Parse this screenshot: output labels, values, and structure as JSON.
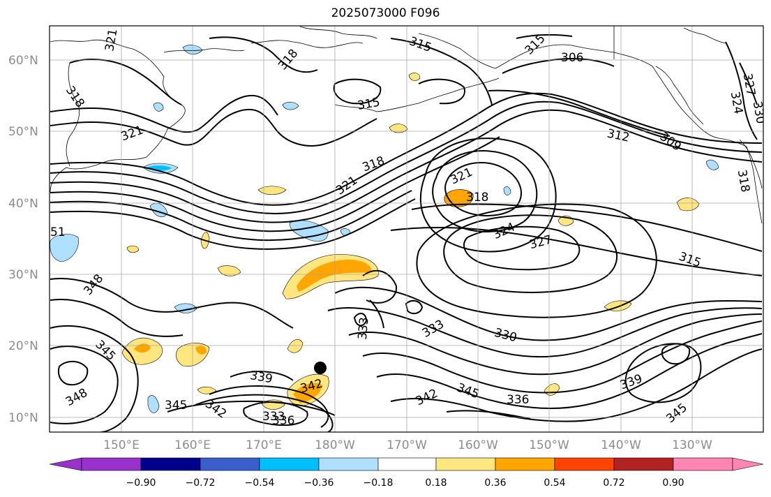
{
  "title": "2025073000 F096",
  "map": {
    "lat_labels": [
      "60°N",
      "50°N",
      "40°N",
      "30°N",
      "20°N",
      "10°N"
    ],
    "lon_labels": [
      "150°E",
      "160°E",
      "170°E",
      "180°W",
      "170°W",
      "160°W",
      "150°W",
      "140°W",
      "130°W"
    ],
    "contour_labels": [
      "321",
      "315",
      "315",
      "318",
      "318",
      "306",
      "315",
      "327",
      "324",
      "330",
      "318",
      "321",
      "312",
      "309",
      "321",
      "318",
      "321",
      "318",
      "324",
      "327",
      "315",
      "51",
      "348",
      "333",
      "333",
      "330",
      "345",
      "339",
      "342",
      "348",
      "345",
      "342",
      "333",
      "336",
      "342",
      "345",
      "336",
      "339",
      "345"
    ],
    "marker": "filled-black-circle"
  },
  "colorbar": {
    "ticks": [
      "−0.90",
      "−0.72",
      "−0.54",
      "−0.36",
      "−0.18",
      "0.18",
      "0.36",
      "0.54",
      "0.72",
      "0.90"
    ],
    "colors": [
      "#9932cc",
      "#00008b",
      "#3a5fcd",
      "#00bfff",
      "#b0e0ff",
      "#ffffff",
      "#ffe680",
      "#ffa500",
      "#ff4500",
      "#b22222",
      "#ff85b3"
    ]
  },
  "colors": {
    "contour": "#000000",
    "coast": "#000000",
    "grid": "#a0a0a0",
    "axis_label": "#8c8c8c"
  }
}
